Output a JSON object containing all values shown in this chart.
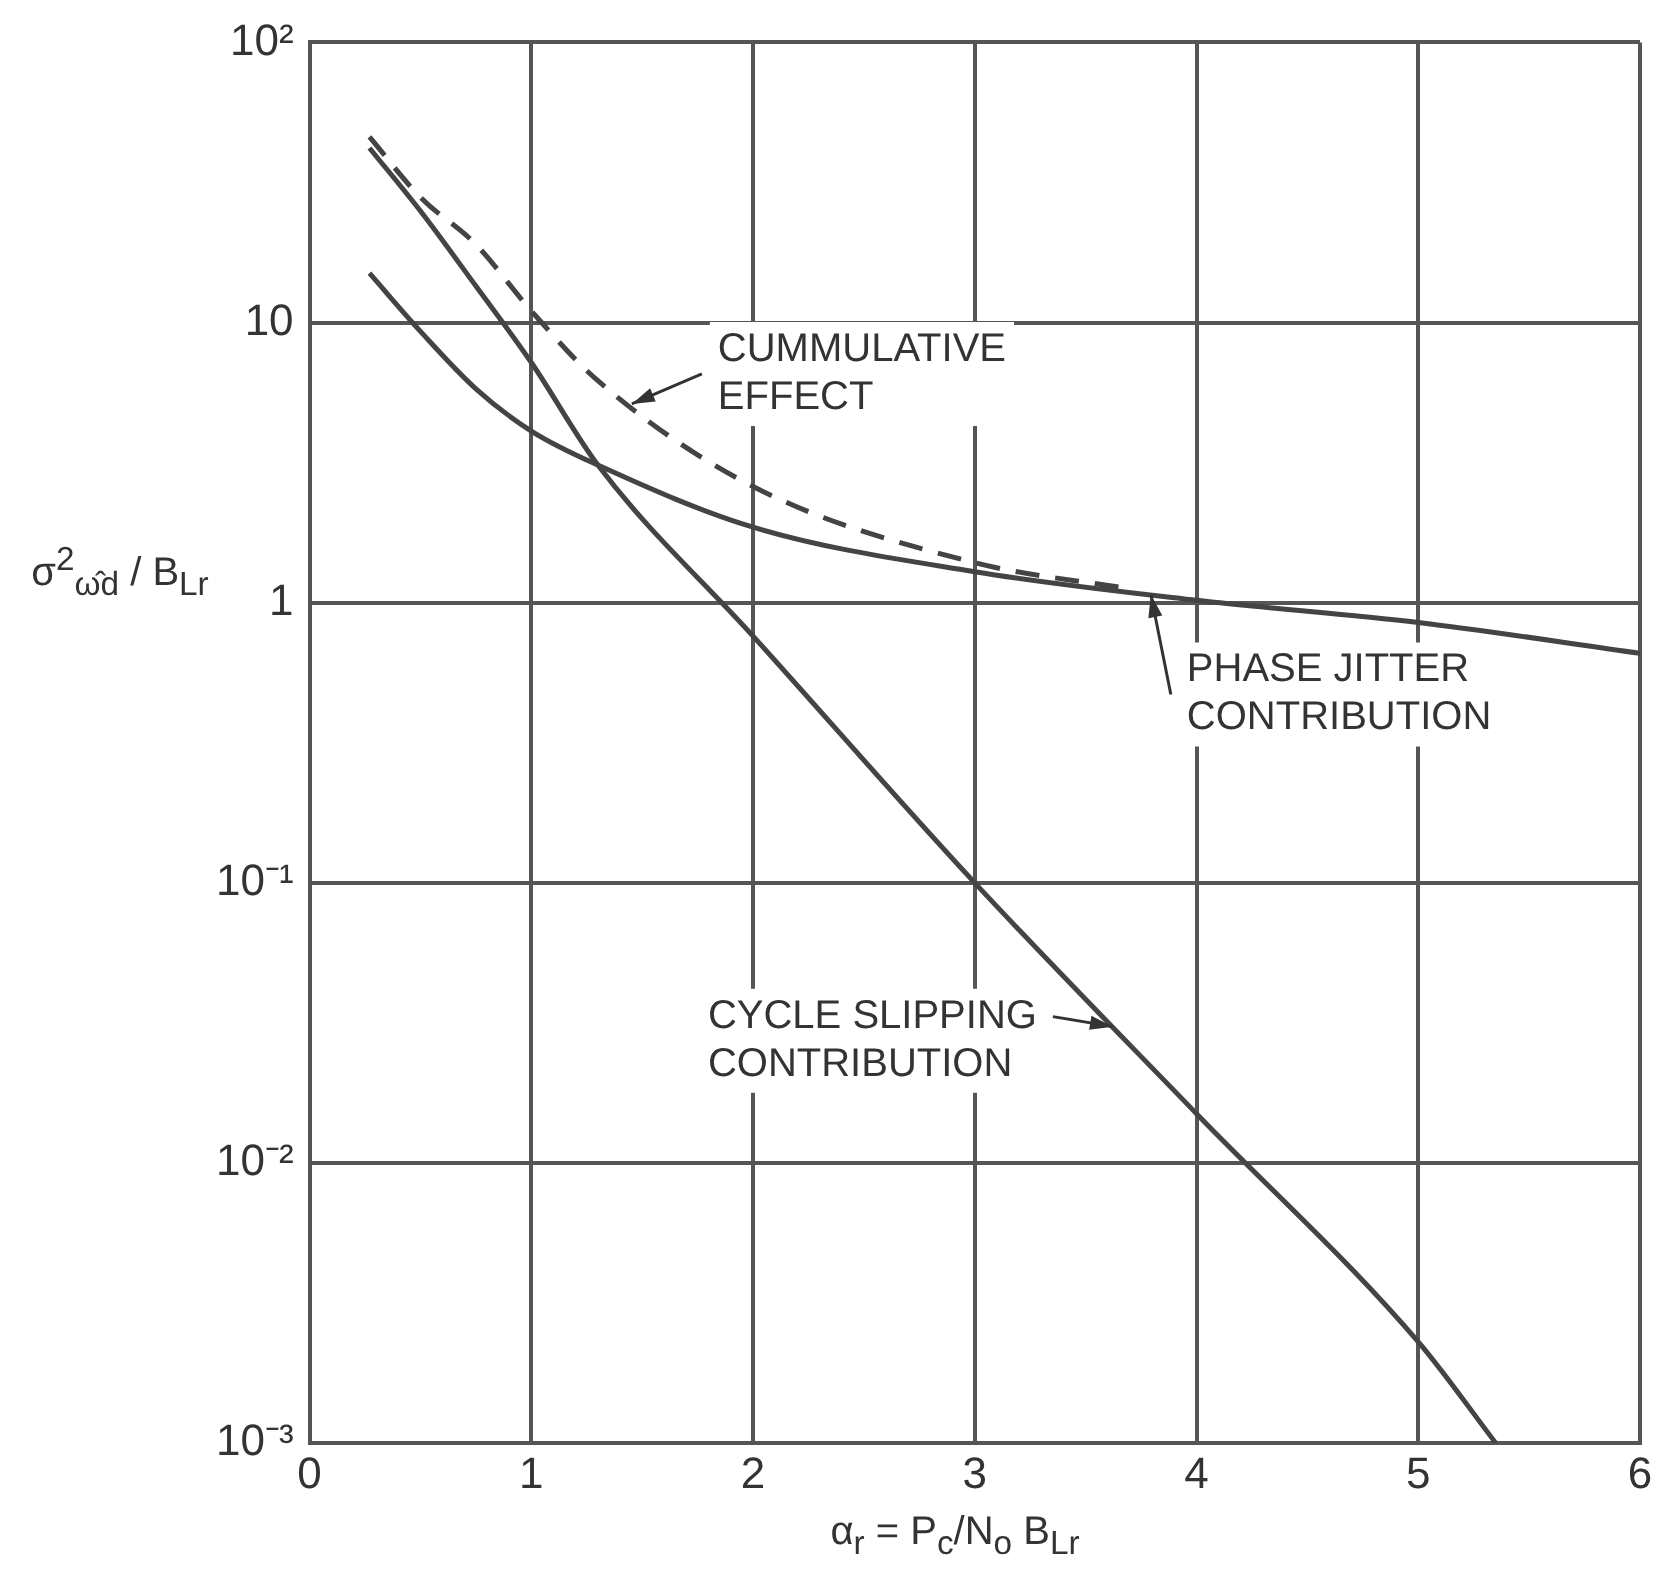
{
  "chart_data": {
    "type": "line",
    "xlabel": "α$_{r}$ = P$_{c}$/N$_{o}$ B$_{Lr}$",
    "ylabel": "σ$^{2}$$_{ω̂d}$ / B$_{Lr}$",
    "log": "y",
    "xlim": [
      0,
      6
    ],
    "xticks": [
      0,
      1,
      2,
      3,
      4,
      5,
      6
    ],
    "ylim": [
      0.001,
      100
    ],
    "yticks": [
      {
        "value": 0.001,
        "label": "10⁻³"
      },
      {
        "value": 0.01,
        "label": "10⁻²"
      },
      {
        "value": 0.1,
        "label": "10⁻¹"
      },
      1,
      10,
      {
        "value": 100,
        "label": "10²"
      }
    ],
    "grid": true,
    "legend": false,
    "marker": "none",
    "series": [
      {
        "name": "CYCLE SLIPPING CONTRIBUTION",
        "color": "#444444",
        "line_style": "solid",
        "x": [
          0.27,
          0.5,
          0.75,
          1,
          1.3,
          2,
          3,
          4,
          5,
          5.35
        ],
        "values": [
          42,
          25,
          13.5,
          7.2,
          3.1,
          0.76,
          0.1,
          0.015,
          0.0023,
          0.001
        ]
      },
      {
        "name": "PHASE JITTER CONTRIBUTION",
        "color": "#444444",
        "line_style": "solid",
        "x": [
          0.27,
          0.5,
          0.75,
          1,
          1.3,
          2,
          3,
          4,
          5,
          6
        ],
        "values": [
          15,
          9.3,
          5.8,
          4.1,
          3.1,
          1.86,
          1.29,
          1.02,
          0.85,
          0.66
        ]
      },
      {
        "name": "CUMMULATIVE EFFECT",
        "color": "#444444",
        "line_style": "dashed",
        "x": [
          0.27,
          0.5,
          0.75,
          1,
          1.3,
          2,
          3,
          3.7
        ],
        "values": [
          46,
          28,
          19,
          11,
          6.2,
          2.6,
          1.39,
          1.12
        ]
      }
    ]
  }
}
